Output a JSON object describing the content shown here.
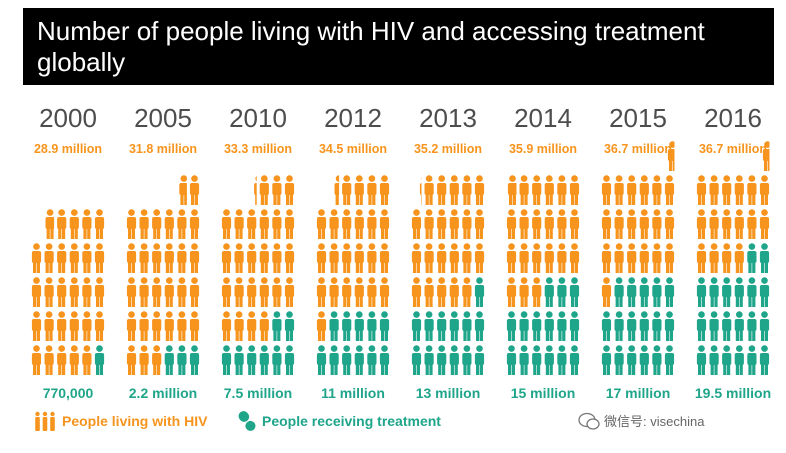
{
  "title": "Number of people living with HIV and accessing treatment globally",
  "colors": {
    "hiv": "#f7941d",
    "treatment": "#1fa58a",
    "year": "#4d4d4d",
    "background": "#ffffff",
    "title_bar": "#000000"
  },
  "legend": {
    "hiv_label": "People living with HIV",
    "treatment_label": "People receiving treatment",
    "hiv_icon": "people-group-icon",
    "treatment_icon": "pill-capsule-icon"
  },
  "watermark": {
    "text": "微信号: visechina",
    "icon": "wechat-icon"
  },
  "chart_data": {
    "type": "pictograph",
    "title": "Number of people living with HIV and accessing treatment globally",
    "categories": [
      "2000",
      "2005",
      "2010",
      "2012",
      "2013",
      "2014",
      "2015",
      "2016"
    ],
    "series": [
      {
        "name": "People living with HIV",
        "unit": "million",
        "values": [
          28.9,
          31.8,
          33.3,
          34.5,
          35.2,
          35.9,
          36.7,
          36.7
        ],
        "labels": [
          "28.9 million",
          "31.8 million",
          "33.3 million",
          "34.5 million",
          "35.2 million",
          "35.9 million",
          "36.7 million",
          "36.7 million"
        ]
      },
      {
        "name": "People receiving treatment",
        "unit": "million",
        "values": [
          0.77,
          2.2,
          7.5,
          11,
          13,
          15,
          17,
          19.5
        ],
        "labels": [
          "770,000",
          "2.2 million",
          "7.5 million",
          "11 million",
          "13 million",
          "15 million",
          "17 million",
          "19.5 million"
        ]
      }
    ],
    "icon_value": "1 million people per figure"
  }
}
